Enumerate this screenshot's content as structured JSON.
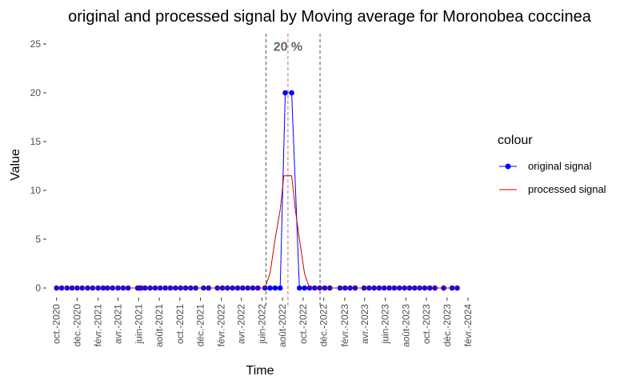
{
  "chart_data": {
    "type": "line",
    "title": "original and processed signal by Moving average for Moronobea coccinea",
    "xlabel": "Time",
    "ylabel": "Value",
    "ylim": [
      0,
      25
    ],
    "yticks": [
      0,
      5,
      10,
      15,
      20,
      25
    ],
    "xlim": [
      "2020-09-01",
      "2024-02-01"
    ],
    "xticks": [
      {
        "date": "2020-10-01",
        "label": "oct.-2020"
      },
      {
        "date": "2020-12-01",
        "label": "déc.-2020"
      },
      {
        "date": "2021-02-01",
        "label": "févr.-2021"
      },
      {
        "date": "2021-04-01",
        "label": "avr.-2021"
      },
      {
        "date": "2021-06-01",
        "label": "juin-2021"
      },
      {
        "date": "2021-08-01",
        "label": "août-2021"
      },
      {
        "date": "2021-10-01",
        "label": "oct.-2021"
      },
      {
        "date": "2021-12-01",
        "label": "déc.-2021"
      },
      {
        "date": "2022-02-01",
        "label": "févr.-2022"
      },
      {
        "date": "2022-04-01",
        "label": "avr.-2022"
      },
      {
        "date": "2022-06-01",
        "label": "juin-2022"
      },
      {
        "date": "2022-08-01",
        "label": "août-2022"
      },
      {
        "date": "2022-10-01",
        "label": "oct.-2022"
      },
      {
        "date": "2022-12-01",
        "label": "déc.-2022"
      },
      {
        "date": "2023-02-01",
        "label": "févr.-2023"
      },
      {
        "date": "2023-04-01",
        "label": "avr.-2023"
      },
      {
        "date": "2023-06-01",
        "label": "juin-2023"
      },
      {
        "date": "2023-08-01",
        "label": "août-2023"
      },
      {
        "date": "2023-10-01",
        "label": "oct.-2023"
      },
      {
        "date": "2023-12-01",
        "label": "déc.-2023"
      },
      {
        "date": "2024-02-01",
        "label": "févr.-2024"
      }
    ],
    "legend": {
      "title": "colour",
      "position": "right"
    },
    "grid": false,
    "series": [
      {
        "name": "original signal",
        "color": "#0000ff",
        "markers": true,
        "points": [
          [
            "2020-10-01",
            0
          ],
          [
            "2020-10-16",
            0
          ],
          [
            "2020-11-01",
            0
          ],
          [
            "2020-11-16",
            0
          ],
          [
            "2020-12-01",
            0
          ],
          [
            "2020-12-16",
            0
          ],
          [
            "2021-01-01",
            0
          ],
          [
            "2021-01-16",
            0
          ],
          [
            "2021-02-01",
            0
          ],
          [
            "2021-02-16",
            0
          ],
          [
            "2021-03-01",
            0
          ],
          [
            "2021-03-16",
            0
          ],
          [
            "2021-04-01",
            0
          ],
          [
            "2021-04-16",
            0
          ],
          [
            "2021-05-01",
            0
          ],
          [
            "2021-05-29",
            0
          ],
          [
            "2021-06-03",
            0
          ],
          [
            "2021-06-08",
            0
          ],
          [
            "2021-06-20",
            0
          ],
          [
            "2021-07-05",
            0
          ],
          [
            "2021-07-20",
            0
          ],
          [
            "2021-08-04",
            0
          ],
          [
            "2021-08-19",
            0
          ],
          [
            "2021-09-03",
            0
          ],
          [
            "2021-09-18",
            0
          ],
          [
            "2021-10-03",
            0
          ],
          [
            "2021-10-18",
            0
          ],
          [
            "2021-11-02",
            0
          ],
          [
            "2021-11-17",
            0
          ],
          [
            "2021-12-10",
            0
          ],
          [
            "2021-12-25",
            0
          ],
          [
            "2022-01-20",
            0
          ],
          [
            "2022-02-04",
            0
          ],
          [
            "2022-02-19",
            0
          ],
          [
            "2022-03-06",
            0
          ],
          [
            "2022-03-21",
            0
          ],
          [
            "2022-04-05",
            0
          ],
          [
            "2022-04-20",
            0
          ],
          [
            "2022-05-05",
            0
          ],
          [
            "2022-05-20",
            0
          ],
          [
            "2022-06-10",
            0
          ],
          [
            "2022-06-25",
            0
          ],
          [
            "2022-07-10",
            0
          ],
          [
            "2022-07-25",
            0
          ],
          [
            "2022-08-09",
            20
          ],
          [
            "2022-08-28",
            20
          ],
          [
            "2022-09-20",
            0
          ],
          [
            "2022-10-05",
            0
          ],
          [
            "2022-10-20",
            0
          ],
          [
            "2022-11-04",
            0
          ],
          [
            "2022-11-19",
            0
          ],
          [
            "2022-12-04",
            0
          ],
          [
            "2022-12-19",
            0
          ],
          [
            "2023-01-18",
            0
          ],
          [
            "2023-02-02",
            0
          ],
          [
            "2023-02-17",
            0
          ],
          [
            "2023-03-04",
            0
          ],
          [
            "2023-03-30",
            0
          ],
          [
            "2023-04-14",
            0
          ],
          [
            "2023-04-29",
            0
          ],
          [
            "2023-05-14",
            0
          ],
          [
            "2023-05-29",
            0
          ],
          [
            "2023-06-13",
            0
          ],
          [
            "2023-06-28",
            0
          ],
          [
            "2023-07-13",
            0
          ],
          [
            "2023-07-28",
            0
          ],
          [
            "2023-08-12",
            0
          ],
          [
            "2023-08-27",
            0
          ],
          [
            "2023-09-11",
            0
          ],
          [
            "2023-09-26",
            0
          ],
          [
            "2023-10-11",
            0
          ],
          [
            "2023-10-26",
            0
          ],
          [
            "2023-11-21",
            0
          ],
          [
            "2023-12-16",
            0
          ],
          [
            "2023-12-31",
            0
          ]
        ]
      },
      {
        "name": "processed signal",
        "color": "#cc0000",
        "markers": false,
        "points": [
          [
            "2020-10-01",
            0
          ],
          [
            "2022-06-10",
            0
          ],
          [
            "2022-06-25",
            1.5
          ],
          [
            "2022-07-10",
            5
          ],
          [
            "2022-07-25",
            8
          ],
          [
            "2022-08-05",
            11.5
          ],
          [
            "2022-08-28",
            11.5
          ],
          [
            "2022-09-08",
            8
          ],
          [
            "2022-09-20",
            5
          ],
          [
            "2022-10-05",
            1.5
          ],
          [
            "2022-10-20",
            0
          ],
          [
            "2023-12-31",
            0
          ]
        ]
      }
    ],
    "annotations": {
      "vlines": [
        {
          "date": "2022-06-13",
          "color": "#555555",
          "style": "dashed"
        },
        {
          "date": "2022-08-17",
          "color": "#cc6666",
          "style": "dashed"
        },
        {
          "date": "2022-11-20",
          "color": "#555555",
          "style": "dashed"
        }
      ],
      "label": {
        "text": "20 %",
        "date": "2022-08-17",
        "y": 24.8
      }
    }
  }
}
